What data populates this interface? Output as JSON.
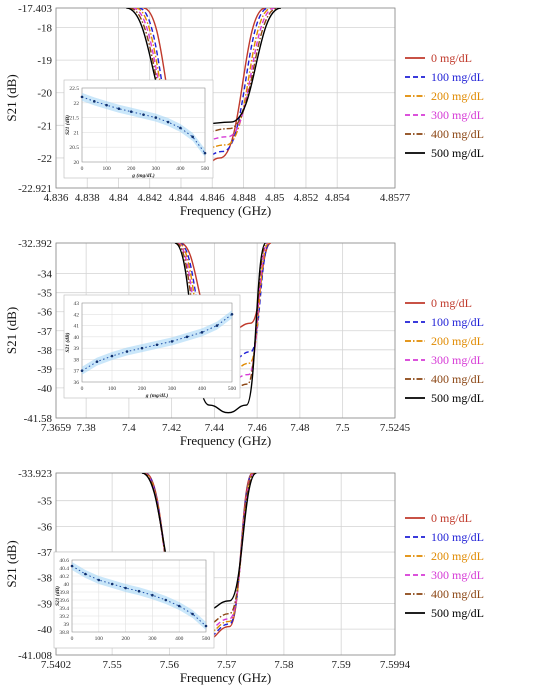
{
  "chart_data": [
    {
      "type": "line",
      "xlabel": "Frequency (GHz)",
      "ylabel": "S21 (dB)",
      "xlim": [
        4.836,
        4.8577
      ],
      "ylim": [
        -22.921,
        -17.403
      ],
      "xticks": [
        "4.836",
        "4.838",
        "4.84",
        "4.842",
        "4.844",
        "4.846",
        "4.848",
        "4.85",
        "4.852",
        "4.854",
        "4.8577"
      ],
      "yticks": [
        "-17.403",
        "-18",
        "-19",
        "-20",
        "-21",
        "-22",
        "-22.921"
      ],
      "grid": true,
      "legend_position": "right",
      "series": [
        {
          "name": "0 mg/dL",
          "color": "#c0392b",
          "dash": "solid",
          "x": [
            4.8416,
            4.8445,
            4.8455,
            4.8465,
            4.8494
          ],
          "y": [
            -17.403,
            -22.0,
            -22.2,
            -22.0,
            -17.403
          ]
        },
        {
          "name": "100 mg/dL",
          "color": "#1f1fd6",
          "dash": "dash",
          "x": [
            4.8413,
            4.8442,
            4.8455,
            4.8467,
            4.8496
          ],
          "y": [
            -17.403,
            -21.8,
            -21.95,
            -21.8,
            -17.403
          ]
        },
        {
          "name": "200 mg/dL",
          "color": "#e08a00",
          "dash": "dashdot",
          "x": [
            4.8411,
            4.8441,
            4.8455,
            4.8469,
            4.8498
          ],
          "y": [
            -17.403,
            -21.6,
            -21.7,
            -21.6,
            -17.403
          ]
        },
        {
          "name": "300 mg/dL",
          "color": "#d63ad6",
          "dash": "dash",
          "x": [
            4.8409,
            4.844,
            4.8455,
            4.847,
            4.85
          ],
          "y": [
            -17.403,
            -21.35,
            -21.45,
            -21.35,
            -17.403
          ]
        },
        {
          "name": "400 mg/dL",
          "color": "#8b4513",
          "dash": "dashdot",
          "x": [
            4.8407,
            4.8439,
            4.8455,
            4.8471,
            4.8502
          ],
          "y": [
            -17.403,
            -21.1,
            -21.2,
            -21.1,
            -17.403
          ]
        },
        {
          "name": "500 mg/dL",
          "color": "#000000",
          "dash": "solid",
          "x": [
            4.8405,
            4.8438,
            4.8455,
            4.8472,
            4.8504
          ],
          "y": [
            -17.403,
            -20.9,
            -20.95,
            -20.9,
            -17.403
          ]
        }
      ],
      "inset": {
        "xlabel": "g (mg/dL)",
        "ylabel": "S21 (dB)",
        "xlim": [
          0,
          500
        ],
        "ylim": [
          20,
          22.5
        ],
        "xticks": [
          "0",
          "100",
          "200",
          "300",
          "400",
          "500"
        ],
        "yticks": [
          "22.5",
          "22",
          "21.5",
          "21",
          "20.5",
          "20"
        ],
        "x": [
          0,
          50,
          100,
          150,
          200,
          250,
          300,
          350,
          400,
          450,
          500
        ],
        "y": [
          22.2,
          22.05,
          21.92,
          21.8,
          21.7,
          21.6,
          21.5,
          21.35,
          21.15,
          20.85,
          20.3
        ]
      }
    },
    {
      "type": "line",
      "xlabel": "Frequency (GHz)",
      "ylabel": "S21 (dB)",
      "xlim": [
        7.3659,
        7.5245
      ],
      "ylim": [
        -41.58,
        -32.392
      ],
      "xticks": [
        "7.3659",
        "7.38",
        "7.4",
        "7.42",
        "7.44",
        "7.46",
        "7.48",
        "7.5",
        "7.5245"
      ],
      "yticks": [
        "-32.392",
        "-34",
        "-35",
        "-36",
        "-37",
        "-38",
        "-39",
        "-40",
        "-41.58"
      ],
      "grid": true,
      "legend_position": "right",
      "series": [
        {
          "name": "0 mg/dL",
          "color": "#c0392b",
          "dash": "solid",
          "x": [
            7.424,
            7.44,
            7.449,
            7.457,
            7.4665
          ],
          "y": [
            -32.392,
            -36.6,
            -36.9,
            -36.6,
            -32.392
          ]
        },
        {
          "name": "100 mg/dL",
          "color": "#1f1fd6",
          "dash": "dash",
          "x": [
            7.4235,
            7.4395,
            7.4485,
            7.457,
            7.466
          ],
          "y": [
            -32.392,
            -38.1,
            -38.5,
            -38.1,
            -32.392
          ]
        },
        {
          "name": "200 mg/dL",
          "color": "#e08a00",
          "dash": "dashdot",
          "x": [
            7.423,
            7.439,
            7.448,
            7.4565,
            7.4655
          ],
          "y": [
            -32.392,
            -38.7,
            -39.1,
            -38.7,
            -32.392
          ]
        },
        {
          "name": "300 mg/dL",
          "color": "#d63ad6",
          "dash": "dash",
          "x": [
            7.4225,
            7.4385,
            7.4475,
            7.456,
            7.465
          ],
          "y": [
            -32.392,
            -39.3,
            -39.6,
            -39.3,
            -32.392
          ]
        },
        {
          "name": "400 mg/dL",
          "color": "#8b4513",
          "dash": "dashdot",
          "x": [
            7.422,
            7.438,
            7.447,
            7.4555,
            7.4645
          ],
          "y": [
            -32.392,
            -39.8,
            -40.2,
            -39.8,
            -32.392
          ]
        },
        {
          "name": "500 mg/dL",
          "color": "#000000",
          "dash": "solid",
          "x": [
            7.4215,
            7.4375,
            7.4465,
            7.455,
            7.464
          ],
          "y": [
            -32.392,
            -40.9,
            -41.3,
            -40.9,
            -32.392
          ]
        }
      ],
      "inset": {
        "xlabel": "g (mg/dL)",
        "ylabel": "S21 (dB)",
        "xlim": [
          0,
          500
        ],
        "ylim": [
          36,
          43
        ],
        "xticks": [
          "0",
          "100",
          "200",
          "300",
          "400",
          "500"
        ],
        "yticks": [
          "43",
          "42",
          "41",
          "40",
          "39",
          "38",
          "37",
          "36"
        ],
        "x": [
          0,
          50,
          100,
          150,
          200,
          250,
          300,
          350,
          400,
          450,
          500
        ],
        "y": [
          37.0,
          37.8,
          38.3,
          38.7,
          39.0,
          39.3,
          39.6,
          40.0,
          40.4,
          41.0,
          42.0
        ]
      }
    },
    {
      "type": "line",
      "xlabel": "Frequency (GHz)",
      "ylabel": "S21 (dB)",
      "xlim": [
        7.5402,
        7.5994
      ],
      "ylim": [
        -41.008,
        -33.923
      ],
      "xticks": [
        "7.5402",
        "7.55",
        "7.56",
        "7.57",
        "7.58",
        "7.59",
        "7.5994"
      ],
      "yticks": [
        "-33.923",
        "-35",
        "-36",
        "-37",
        "-38",
        "-39",
        "-40",
        "-41.008"
      ],
      "grid": true,
      "legend_position": "right",
      "series": [
        {
          "name": "0 mg/dL",
          "color": "#c0392b",
          "dash": "solid",
          "x": [
            7.5558,
            7.5625,
            7.5665,
            7.5705,
            7.5745
          ],
          "y": [
            -33.923,
            -39.9,
            -40.4,
            -39.9,
            -33.923
          ]
        },
        {
          "name": "100 mg/dL",
          "color": "#1f1fd6",
          "dash": "dash",
          "x": [
            7.5557,
            7.5625,
            7.5665,
            7.5705,
            7.5746
          ],
          "y": [
            -33.923,
            -39.8,
            -40.3,
            -39.8,
            -33.923
          ]
        },
        {
          "name": "200 mg/dL",
          "color": "#e08a00",
          "dash": "dashdot",
          "x": [
            7.5556,
            7.5625,
            7.5665,
            7.5705,
            7.5747
          ],
          "y": [
            -33.923,
            -39.7,
            -40.15,
            -39.7,
            -33.923
          ]
        },
        {
          "name": "300 mg/dL",
          "color": "#d63ad6",
          "dash": "dash",
          "x": [
            7.5555,
            7.5625,
            7.5665,
            7.5705,
            7.5748
          ],
          "y": [
            -33.923,
            -39.6,
            -40.0,
            -39.6,
            -33.923
          ]
        },
        {
          "name": "400 mg/dL",
          "color": "#8b4513",
          "dash": "dashdot",
          "x": [
            7.5554,
            7.5625,
            7.5665,
            7.5705,
            7.5749
          ],
          "y": [
            -33.923,
            -39.4,
            -39.8,
            -39.4,
            -33.923
          ]
        },
        {
          "name": "500 mg/dL",
          "color": "#000000",
          "dash": "solid",
          "x": [
            7.5552,
            7.5625,
            7.5665,
            7.5705,
            7.5752
          ],
          "y": [
            -33.923,
            -38.9,
            -39.25,
            -38.9,
            -33.923
          ]
        }
      ],
      "inset": {
        "xlabel": "",
        "ylabel": "S21 (dB)",
        "xlim": [
          0,
          500
        ],
        "ylim": [
          38.8,
          40.6
        ],
        "xticks": [
          "0",
          "100",
          "200",
          "300",
          "400",
          "500"
        ],
        "yticks": [
          "40.6",
          "40.4",
          "40.2",
          "40",
          "39.8",
          "39.6",
          "39.4",
          "39.2",
          "39",
          "38.8"
        ],
        "x": [
          0,
          50,
          100,
          150,
          200,
          250,
          300,
          350,
          400,
          450,
          500
        ],
        "y": [
          40.45,
          40.25,
          40.1,
          40.0,
          39.9,
          39.82,
          39.72,
          39.6,
          39.45,
          39.25,
          38.95
        ]
      }
    }
  ]
}
